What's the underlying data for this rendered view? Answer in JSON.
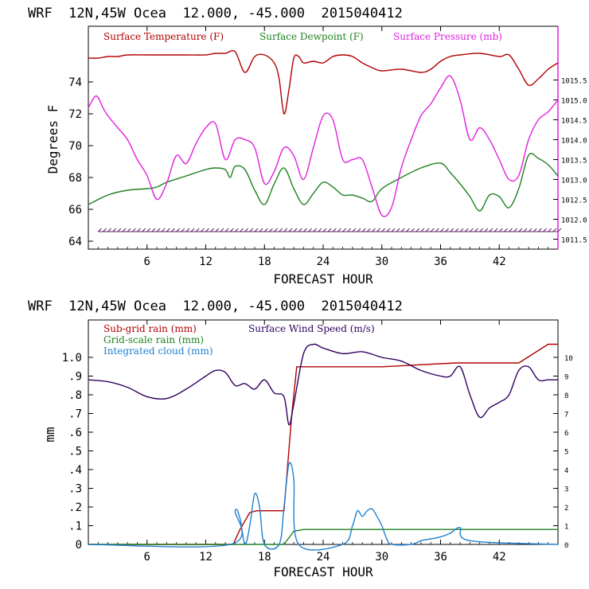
{
  "header_top": "WRF  12N,45W Ocea  12.000, -45.000  2015040412",
  "header_bottom": "WRF  12N,45W Ocea  12.000, -45.000  2015040412",
  "chart_data": [
    {
      "type": "line",
      "xlabel": "FORECAST HOUR",
      "ylabel": "Degrees F",
      "xlim": [
        0,
        48
      ],
      "xticks": [
        6,
        12,
        18,
        24,
        30,
        36,
        42
      ],
      "ylim": [
        63.5,
        77.5
      ],
      "yticks": [
        64,
        66,
        68,
        70,
        72,
        74
      ],
      "y2lim": [
        1011.25,
        1016.85
      ],
      "y2ticks": [
        "1011.5",
        "1012.0",
        "1012.5",
        "1013.0",
        "1013.5",
        "1014.0",
        "1014.5",
        "1015.0",
        "1015.5"
      ],
      "legend_placement": "top",
      "colors": {
        "temperature": "#b00000",
        "dewpoint": "#208020",
        "pressure": "#e020e0",
        "wind_barbs": "#602060"
      },
      "series": [
        {
          "name": "Surface Temperature (F)",
          "axis": "left",
          "x": [
            0,
            1,
            2,
            3,
            4,
            6,
            8,
            10,
            12,
            13,
            14,
            15,
            16,
            17,
            18,
            19,
            19.5,
            20,
            20.5,
            21,
            21.5,
            22,
            23,
            24,
            25,
            26,
            27,
            28,
            29,
            30,
            32,
            34,
            35,
            36,
            37,
            38,
            40,
            42,
            43,
            44,
            45,
            46,
            47,
            48
          ],
          "y": [
            75.5,
            75.5,
            75.6,
            75.6,
            75.7,
            75.7,
            75.7,
            75.7,
            75.7,
            75.8,
            75.8,
            75.9,
            74.6,
            75.6,
            75.7,
            75.2,
            74.2,
            72.0,
            73.5,
            75.5,
            75.6,
            75.2,
            75.3,
            75.2,
            75.6,
            75.7,
            75.6,
            75.2,
            74.9,
            74.7,
            74.8,
            74.6,
            74.8,
            75.3,
            75.6,
            75.7,
            75.8,
            75.6,
            75.7,
            74.8,
            73.8,
            74.2,
            74.8,
            75.2
          ]
        },
        {
          "name": "Surface Dewpoint (F)",
          "axis": "left",
          "x": [
            0,
            2,
            4,
            6,
            7,
            8,
            10,
            12,
            13,
            14,
            14.5,
            15,
            16,
            17,
            18,
            19,
            20,
            21,
            22,
            23,
            24,
            25,
            26,
            27,
            28,
            29,
            30,
            32,
            34,
            36,
            37,
            38,
            39,
            40,
            41,
            42,
            43,
            44,
            45,
            46,
            47,
            48
          ],
          "y": [
            66.3,
            66.9,
            67.2,
            67.3,
            67.4,
            67.7,
            68.1,
            68.5,
            68.6,
            68.5,
            68.0,
            68.7,
            68.5,
            67.2,
            66.3,
            67.6,
            68.6,
            67.3,
            66.3,
            67.0,
            67.7,
            67.4,
            66.9,
            66.9,
            66.7,
            66.5,
            67.3,
            68.0,
            68.6,
            68.9,
            68.3,
            67.6,
            66.8,
            65.9,
            66.9,
            66.8,
            66.1,
            67.3,
            69.4,
            69.2,
            68.8,
            68.1
          ]
        },
        {
          "name": "Surface Pressure (mb)",
          "axis": "right",
          "x": [
            0,
            0.8,
            1.5,
            2,
            3,
            4,
            5,
            6,
            7,
            8,
            9,
            10,
            11,
            12,
            13,
            14,
            15,
            16,
            17,
            18,
            19,
            20,
            21,
            22,
            23,
            24,
            25,
            26,
            27,
            28,
            29,
            30,
            31,
            32,
            33,
            34,
            35,
            36,
            37,
            38,
            39,
            40,
            41,
            42,
            43,
            44,
            45,
            46,
            47,
            48
          ],
          "y": [
            1014.8,
            1015.1,
            1014.8,
            1014.6,
            1014.3,
            1014.0,
            1013.5,
            1013.1,
            1012.5,
            1012.9,
            1013.6,
            1013.4,
            1013.9,
            1014.3,
            1014.4,
            1013.5,
            1014.0,
            1014.0,
            1013.8,
            1012.9,
            1013.2,
            1013.8,
            1013.6,
            1013.0,
            1013.8,
            1014.6,
            1014.5,
            1013.5,
            1013.5,
            1013.5,
            1012.8,
            1012.1,
            1012.3,
            1013.3,
            1014.0,
            1014.6,
            1014.9,
            1015.3,
            1015.6,
            1015.0,
            1014.0,
            1014.3,
            1014.0,
            1013.5,
            1013.0,
            1013.1,
            1014.0,
            1014.5,
            1014.7,
            1015.0
          ]
        }
      ],
      "wind_barbs_level": 64.6
    },
    {
      "type": "line",
      "xlabel": "FORECAST HOUR",
      "ylabel": "mm",
      "xlim": [
        0,
        48
      ],
      "xticks": [
        6,
        12,
        18,
        24,
        30,
        36,
        42
      ],
      "ylim": [
        0,
        1.2
      ],
      "yticks": [
        "0",
        ".1",
        ".2",
        ".3",
        ".4",
        ".5",
        ".6",
        ".7",
        ".8",
        ".9",
        "1.0"
      ],
      "y2lim": [
        0,
        12
      ],
      "y2ticks": [
        "0",
        "1",
        "2",
        "3",
        "4",
        "5",
        "6",
        "7",
        "8",
        "9",
        "10"
      ],
      "legend_placement": "top-left",
      "colors": {
        "subgrid": "#b00000",
        "gridscale": "#208020",
        "cloud": "#2080d0",
        "wind": "#300060"
      },
      "series": [
        {
          "name": "Sub-grid rain (mm)",
          "axis": "left",
          "x": [
            0,
            14.8,
            15.5,
            16.5,
            17.2,
            20,
            20.8,
            21.3,
            22,
            30,
            37.5,
            44,
            47,
            48
          ],
          "y": [
            0,
            0,
            0.08,
            0.17,
            0.18,
            0.18,
            0.7,
            0.95,
            0.95,
            0.95,
            0.97,
            0.97,
            1.07,
            1.07
          ]
        },
        {
          "name": "Grid-scale rain (mm)",
          "axis": "left",
          "x": [
            0,
            20,
            21,
            22,
            48
          ],
          "y": [
            0,
            0,
            0.07,
            0.08,
            0.08
          ]
        },
        {
          "name": "Integrated cloud (mm)",
          "axis": "left",
          "x": [
            0,
            14.5,
            15,
            15.5,
            16,
            16.5,
            17,
            17.5,
            18,
            19.5,
            20,
            20.5,
            21,
            21.5,
            26,
            27,
            27.5,
            28,
            28.5,
            29,
            29.5,
            30,
            30.5,
            31,
            33,
            34,
            35,
            36,
            37,
            38,
            39,
            48
          ],
          "y": [
            0,
            0,
            0.18,
            0.14,
            0,
            0.1,
            0.27,
            0.2,
            0,
            0,
            0.2,
            0.43,
            0.35,
            0,
            0,
            0.1,
            0.18,
            0.15,
            0.18,
            0.19,
            0.15,
            0.1,
            0.03,
            0,
            0,
            0.02,
            0.03,
            0.04,
            0.06,
            0.09,
            0.02,
            0
          ]
        },
        {
          "name": "Surface Wind Speed (m/s)",
          "axis": "right",
          "x": [
            0,
            2,
            4,
            6,
            8,
            10,
            12,
            13,
            14,
            15,
            16,
            17,
            18,
            19,
            20,
            20.5,
            21,
            22,
            23,
            24,
            26,
            28,
            30,
            32,
            34,
            36,
            37,
            38,
            39,
            40,
            41,
            42,
            43,
            44,
            45,
            46,
            47,
            48
          ],
          "y": [
            8.8,
            8.7,
            8.4,
            7.9,
            7.8,
            8.3,
            9.0,
            9.3,
            9.2,
            8.5,
            8.6,
            8.3,
            8.8,
            8.1,
            7.9,
            6.4,
            7.5,
            10.2,
            10.7,
            10.5,
            10.2,
            10.3,
            10.0,
            9.8,
            9.3,
            9.0,
            9.0,
            9.5,
            8.0,
            6.8,
            7.3,
            7.6,
            8.0,
            9.3,
            9.5,
            8.8,
            8.8,
            8.8
          ]
        }
      ]
    }
  ]
}
